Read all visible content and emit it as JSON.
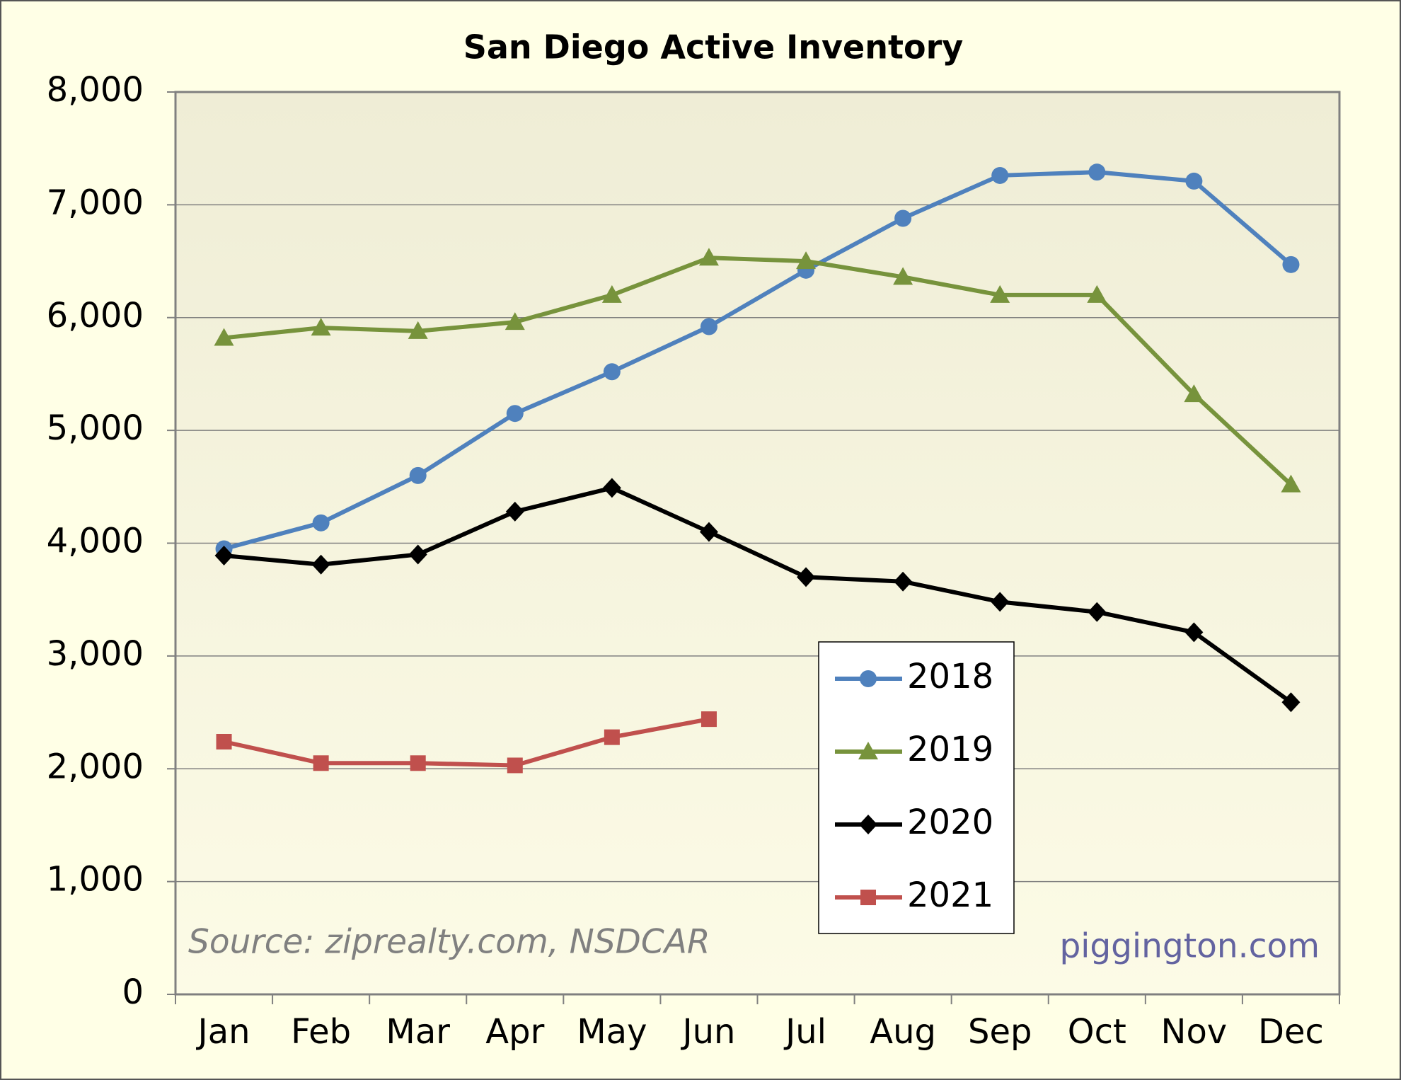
{
  "chart_data": {
    "type": "line",
    "title": "San Diego Active Inventory",
    "categories": [
      "Jan",
      "Feb",
      "Mar",
      "Apr",
      "May",
      "Jun",
      "Jul",
      "Aug",
      "Sep",
      "Oct",
      "Nov",
      "Dec"
    ],
    "series": [
      {
        "name": "2018",
        "color": "#4f81bd",
        "marker": "circle",
        "values": [
          3950,
          4180,
          4600,
          5150,
          5520,
          5920,
          6420,
          6880,
          7260,
          7290,
          7210,
          6470
        ]
      },
      {
        "name": "2019",
        "color": "#77933c",
        "marker": "triangle",
        "values": [
          5820,
          5910,
          5880,
          5960,
          6200,
          6530,
          6500,
          6360,
          6200,
          6200,
          5320,
          4520
        ]
      },
      {
        "name": "2020",
        "color": "#000000",
        "marker": "diamond",
        "values": [
          3890,
          3810,
          3900,
          4280,
          4490,
          4100,
          3700,
          3660,
          3480,
          3390,
          3210,
          2590
        ]
      },
      {
        "name": "2021",
        "color": "#c0504d",
        "marker": "square",
        "values": [
          2240,
          2050,
          2050,
          2030,
          2280,
          2440,
          null,
          null,
          null,
          null,
          null,
          null
        ]
      }
    ],
    "ylim": [
      0,
      8000
    ],
    "yticks": [
      0,
      {
        "value": 1000,
        "label": "1,000"
      },
      {
        "value": 2000,
        "label": "2,000"
      },
      {
        "value": 3000,
        "label": "3,000"
      },
      {
        "value": 4000,
        "label": "4,000"
      },
      {
        "value": 5000,
        "label": "5,000"
      },
      {
        "value": 6000,
        "label": "6,000"
      },
      {
        "value": 7000,
        "label": "7,000"
      },
      {
        "value": 8000,
        "label": "8,000"
      }
    ],
    "grid": true,
    "legend": "lower right",
    "annotations": [
      "Source: ziprealty.com, NSDCAR",
      "piggington.com"
    ]
  }
}
